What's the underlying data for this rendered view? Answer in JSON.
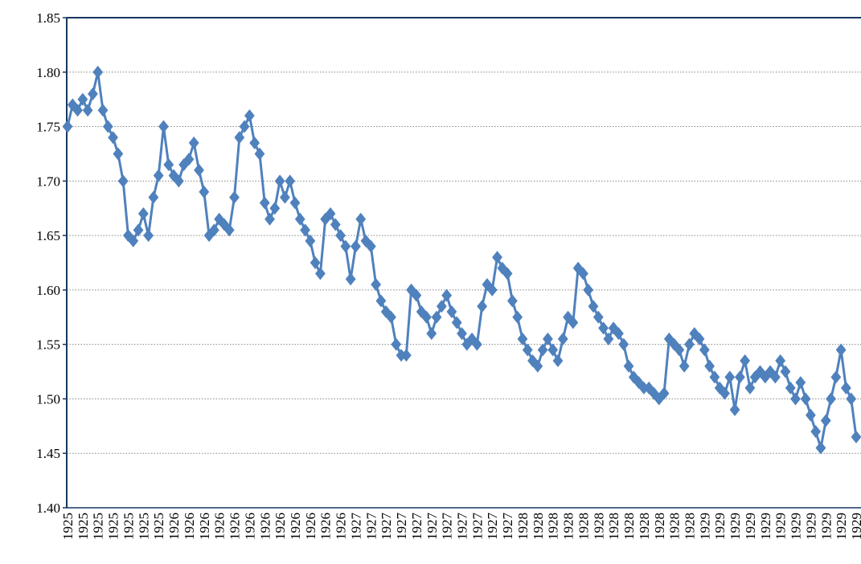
{
  "chart_data": {
    "type": "line",
    "categories": [
      "1925",
      null,
      null,
      "1925",
      null,
      null,
      "1925",
      null,
      null,
      "1925",
      null,
      null,
      "1925",
      null,
      null,
      "1925",
      null,
      null,
      "1925",
      null,
      null,
      "1926",
      null,
      null,
      "1926",
      null,
      null,
      "1926",
      null,
      null,
      "1926",
      null,
      null,
      "1926",
      null,
      null,
      "1926",
      null,
      null,
      "1926",
      null,
      null,
      "1926",
      null,
      null,
      "1926",
      null,
      null,
      "1926",
      null,
      null,
      "1926",
      null,
      null,
      "1926",
      null,
      null,
      "1927",
      null,
      null,
      "1927",
      null,
      null,
      "1927",
      null,
      null,
      "1927",
      null,
      null,
      "1927",
      null,
      null,
      "1927",
      null,
      null,
      "1927",
      null,
      null,
      "1927",
      null,
      null,
      "1927",
      null,
      null,
      "1927",
      null,
      null,
      "1927",
      null,
      null,
      "1928",
      null,
      null,
      "1928",
      null,
      null,
      "1928",
      null,
      null,
      "1928",
      null,
      null,
      "1928",
      null,
      null,
      "1928",
      null,
      null,
      "1928",
      null,
      null,
      "1928",
      null,
      null,
      "1928",
      null,
      null,
      "1928",
      null,
      null,
      "1928",
      null,
      null,
      "1928",
      null,
      null,
      "1929",
      null,
      null,
      "1929",
      null,
      null,
      "1929",
      null,
      null,
      "1929",
      null,
      null,
      "1929",
      null,
      null,
      "1929",
      null,
      null,
      "1929",
      null,
      null,
      "1929",
      null,
      null,
      "1929",
      null,
      null,
      "1929",
      null,
      null,
      "1929"
    ],
    "series": [
      {
        "color": "#4f81bd",
        "values": [
          1.75,
          1.77,
          1.765,
          1.775,
          1.765,
          1.78,
          1.8,
          1.765,
          1.75,
          1.74,
          1.725,
          1.7,
          1.65,
          1.645,
          1.655,
          1.67,
          1.65,
          1.685,
          1.705,
          1.75,
          1.715,
          1.705,
          1.7,
          1.715,
          1.72,
          1.735,
          1.71,
          1.69,
          1.65,
          1.655,
          1.665,
          1.66,
          1.655,
          1.685,
          1.74,
          1.75,
          1.76,
          1.735,
          1.725,
          1.68,
          1.665,
          1.675,
          1.7,
          1.685,
          1.7,
          1.68,
          1.665,
          1.655,
          1.645,
          1.625,
          1.615,
          1.665,
          1.67,
          1.66,
          1.65,
          1.64,
          1.61,
          1.64,
          1.665,
          1.645,
          1.64,
          1.605,
          1.59,
          1.58,
          1.575,
          1.55,
          1.54,
          1.54,
          1.6,
          1.595,
          1.58,
          1.575,
          1.56,
          1.575,
          1.585,
          1.595,
          1.58,
          1.57,
          1.56,
          1.55,
          1.555,
          1.55,
          1.585,
          1.605,
          1.6,
          1.63,
          1.62,
          1.615,
          1.59,
          1.575,
          1.555,
          1.545,
          1.535,
          1.53,
          1.545,
          1.555,
          1.545,
          1.535,
          1.555,
          1.575,
          1.57,
          1.62,
          1.615,
          1.6,
          1.585,
          1.575,
          1.565,
          1.555,
          1.565,
          1.56,
          1.55,
          1.53,
          1.52,
          1.515,
          1.51,
          1.51,
          1.505,
          1.5,
          1.505,
          1.555,
          1.55,
          1.545,
          1.53,
          1.55,
          1.56,
          1.555,
          1.545,
          1.53,
          1.52,
          1.51,
          1.505,
          1.52,
          1.49,
          1.52,
          1.535,
          1.51,
          1.52,
          1.525,
          1.52,
          1.525,
          1.52,
          1.535,
          1.525,
          1.51,
          1.5,
          1.515,
          1.5,
          1.485,
          1.47,
          1.455,
          1.48,
          1.5,
          1.52,
          1.545,
          1.51,
          1.5,
          1.465
        ]
      }
    ],
    "ylim": [
      1.4,
      1.85
    ],
    "yticks": [
      {
        "value": 1.4,
        "label": "1.40"
      },
      1.45,
      {
        "value": 1.5,
        "label": "1.50"
      },
      1.55,
      {
        "value": 1.6,
        "label": "1.60"
      },
      1.65,
      {
        "value": 1.7,
        "label": "1.70"
      },
      1.75,
      {
        "value": 1.8,
        "label": "1.80"
      },
      1.85
    ],
    "grid": true
  }
}
